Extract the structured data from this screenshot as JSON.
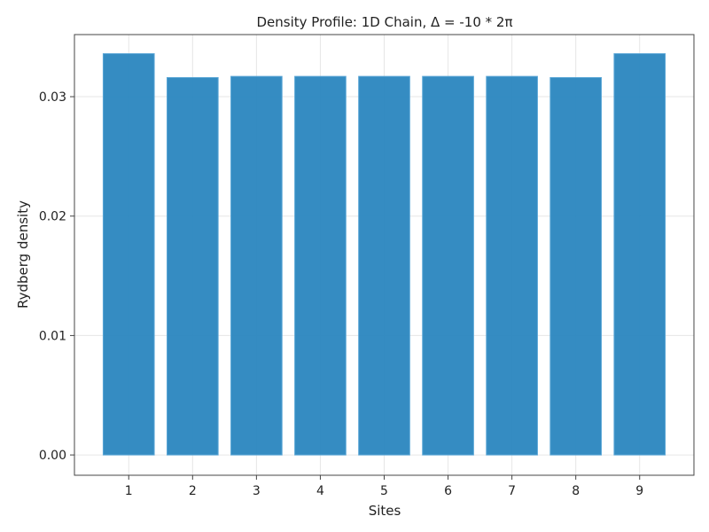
{
  "chart_data": {
    "type": "bar",
    "title": "Density Profile: 1D Chain, Δ = -10 * 2π",
    "xlabel": "Sites",
    "ylabel": "Rydberg density",
    "categories": [
      "1",
      "2",
      "3",
      "4",
      "5",
      "6",
      "7",
      "8",
      "9"
    ],
    "x": [
      1,
      2,
      3,
      4,
      5,
      6,
      7,
      8,
      9
    ],
    "values": [
      0.0336,
      0.0316,
      0.0317,
      0.0317,
      0.0317,
      0.0317,
      0.0317,
      0.0316,
      0.0336
    ],
    "xlim": [
      0.15,
      9.85
    ],
    "ylim": [
      -0.0017,
      0.0352
    ],
    "yticks": [
      0.0,
      0.01,
      0.02,
      0.03
    ],
    "ytick_labels": [
      "0.00",
      "0.01",
      "0.02",
      "0.03"
    ],
    "grid": true,
    "legend": "none",
    "bar_color": "#2a86bf"
  }
}
